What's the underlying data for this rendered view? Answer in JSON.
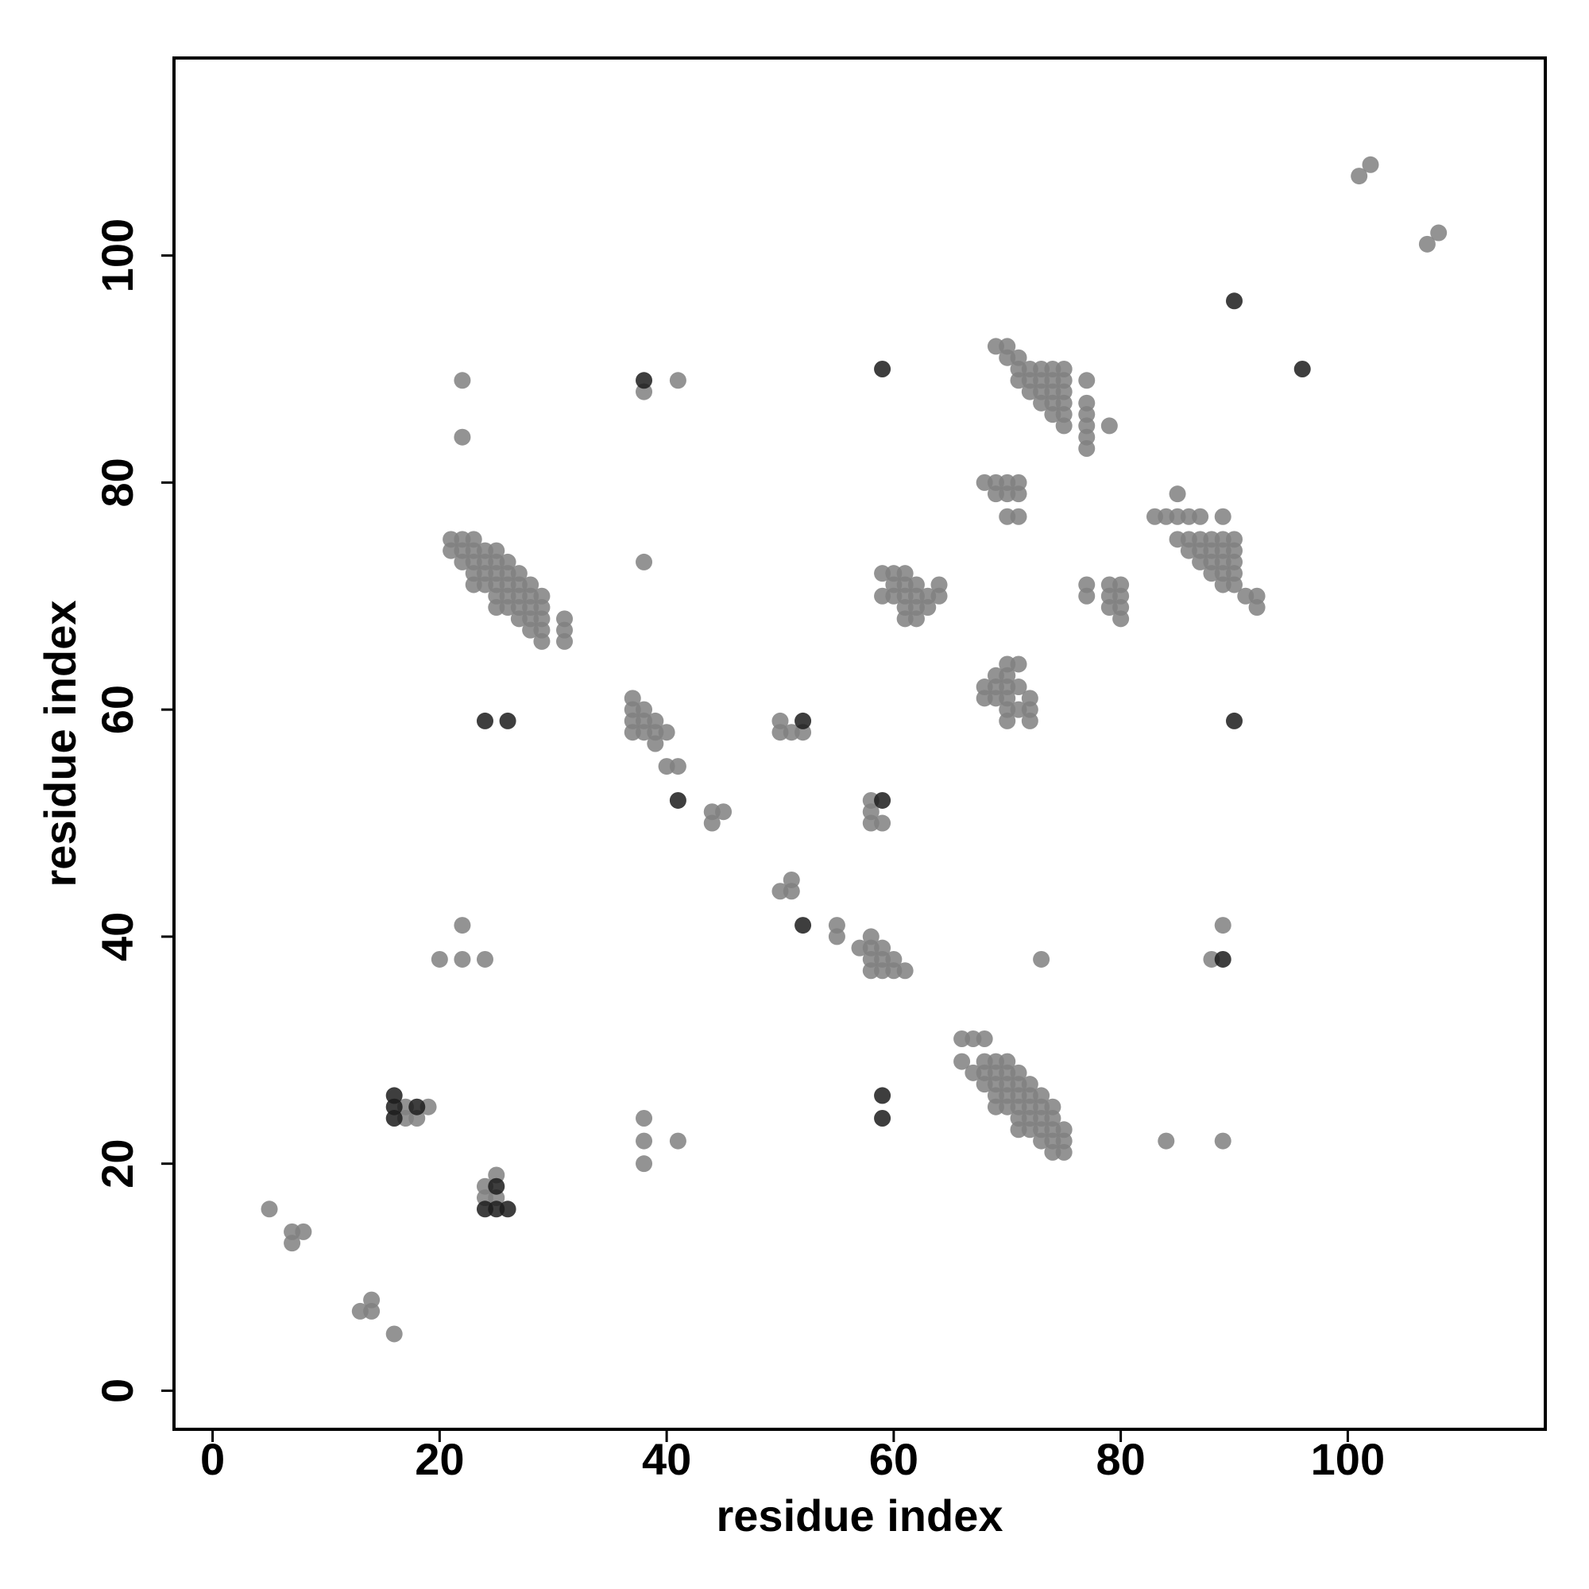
{
  "chart_data": {
    "type": "scatter",
    "x_label": "residue index",
    "y_label": "residue index",
    "xlim": [
      -3.4,
      117.4
    ],
    "ylim": [
      -3.4,
      117.4
    ],
    "xticks": [
      0,
      20,
      40,
      60,
      80,
      100
    ],
    "yticks": [
      0,
      20,
      40,
      60,
      80,
      100
    ],
    "grid": false,
    "point_opacity": 0.85,
    "series": [
      {
        "color": "#808080",
        "x": [
          5,
          7,
          7,
          8,
          13,
          14,
          14,
          16,
          17,
          17,
          18,
          19,
          24,
          24,
          25,
          25,
          20,
          22,
          22,
          24,
          22,
          22,
          21,
          21,
          22,
          22,
          22,
          23,
          23,
          23,
          23,
          23,
          24,
          24,
          24,
          24,
          25,
          25,
          25,
          25,
          25,
          25,
          26,
          26,
          26,
          26,
          26,
          27,
          27,
          27,
          27,
          27,
          28,
          28,
          28,
          28,
          28,
          29,
          29,
          29,
          29,
          29,
          31,
          31,
          31,
          38,
          38,
          38,
          38,
          38,
          41,
          41,
          37,
          37,
          37,
          37,
          38,
          38,
          38,
          39,
          39,
          39,
          40,
          40,
          41,
          44,
          44,
          45,
          50,
          50,
          51,
          52,
          50,
          51,
          51,
          55,
          55,
          57,
          58,
          58,
          58,
          58,
          59,
          59,
          59,
          60,
          60,
          61,
          58,
          58,
          58,
          59,
          59,
          59,
          60,
          60,
          60,
          61,
          61,
          61,
          61,
          61,
          62,
          62,
          62,
          62,
          63,
          63,
          64,
          64,
          68,
          69,
          69,
          70,
          70,
          70,
          71,
          71,
          71,
          68,
          68,
          69,
          69,
          69,
          70,
          70,
          70,
          70,
          70,
          70,
          71,
          71,
          71,
          72,
          72,
          72,
          69,
          70,
          70,
          71,
          71,
          71,
          72,
          72,
          72,
          73,
          73,
          73,
          73,
          74,
          74,
          74,
          74,
          74,
          75,
          75,
          75,
          75,
          75,
          75,
          77,
          77,
          77,
          77,
          77,
          77,
          79,
          77,
          77,
          79,
          79,
          79,
          80,
          80,
          80,
          80,
          83,
          84,
          85,
          85,
          85,
          86,
          86,
          86,
          87,
          87,
          87,
          87,
          88,
          88,
          88,
          88,
          89,
          89,
          89,
          89,
          89,
          89,
          90,
          90,
          90,
          90,
          90,
          91,
          92,
          92,
          89,
          88,
          89,
          84,
          73,
          101,
          102,
          107,
          108,
          66,
          67,
          68,
          66,
          67,
          68,
          68,
          68,
          69,
          69,
          69,
          69,
          69,
          70,
          70,
          70,
          70,
          70,
          71,
          71,
          71,
          71,
          71,
          71,
          72,
          72,
          72,
          72,
          72,
          73,
          73,
          73,
          73,
          73,
          74,
          74,
          74,
          74,
          74,
          75,
          75,
          75
        ],
        "y": [
          16,
          14,
          13,
          14,
          7,
          7,
          8,
          5,
          25,
          24,
          24,
          25,
          18,
          17,
          19,
          17,
          38,
          38,
          41,
          38,
          84,
          89,
          75,
          74,
          75,
          74,
          73,
          75,
          74,
          73,
          72,
          71,
          74,
          73,
          72,
          71,
          74,
          73,
          72,
          71,
          70,
          69,
          73,
          72,
          71,
          70,
          69,
          72,
          71,
          70,
          69,
          68,
          71,
          70,
          69,
          68,
          67,
          70,
          69,
          68,
          67,
          66,
          68,
          67,
          66,
          88,
          73,
          24,
          22,
          20,
          89,
          22,
          61,
          60,
          59,
          58,
          60,
          59,
          58,
          59,
          58,
          57,
          58,
          55,
          55,
          51,
          50,
          51,
          59,
          58,
          58,
          58,
          44,
          45,
          44,
          41,
          40,
          39,
          40,
          39,
          38,
          37,
          39,
          38,
          37,
          38,
          37,
          37,
          52,
          51,
          50,
          50,
          72,
          70,
          72,
          71,
          70,
          72,
          71,
          70,
          69,
          68,
          71,
          70,
          69,
          68,
          70,
          69,
          71,
          70,
          80,
          80,
          79,
          80,
          79,
          77,
          80,
          79,
          77,
          62,
          61,
          63,
          62,
          61,
          64,
          63,
          62,
          61,
          60,
          59,
          64,
          62,
          60,
          61,
          60,
          59,
          92,
          92,
          91,
          91,
          90,
          89,
          90,
          89,
          88,
          90,
          89,
          88,
          87,
          90,
          89,
          88,
          87,
          86,
          90,
          89,
          88,
          87,
          86,
          85,
          89,
          87,
          86,
          85,
          84,
          83,
          85,
          71,
          70,
          71,
          70,
          69,
          71,
          70,
          69,
          68,
          77,
          77,
          79,
          77,
          75,
          77,
          75,
          74,
          77,
          75,
          74,
          73,
          75,
          74,
          73,
          72,
          77,
          75,
          74,
          73,
          72,
          71,
          75,
          74,
          73,
          72,
          71,
          70,
          70,
          69,
          41,
          38,
          22,
          22,
          38,
          107,
          108,
          101,
          102,
          31,
          31,
          31,
          29,
          28,
          29,
          28,
          27,
          29,
          28,
          27,
          26,
          25,
          29,
          28,
          27,
          26,
          25,
          28,
          27,
          26,
          25,
          24,
          23,
          27,
          26,
          25,
          24,
          23,
          26,
          25,
          24,
          23,
          22,
          25,
          24,
          23,
          22,
          21,
          23,
          22,
          21
        ]
      },
      {
        "color": "#1c1c1c",
        "x": [
          16,
          16,
          16,
          18,
          25,
          24,
          25,
          26,
          24,
          26,
          38,
          41,
          52,
          52,
          59,
          59,
          59,
          59,
          90,
          96,
          90,
          89
        ],
        "y": [
          26,
          25,
          24,
          25,
          18,
          16,
          16,
          16,
          59,
          59,
          89,
          52,
          59,
          41,
          52,
          90,
          26,
          24,
          96,
          90,
          59,
          38
        ]
      }
    ]
  }
}
